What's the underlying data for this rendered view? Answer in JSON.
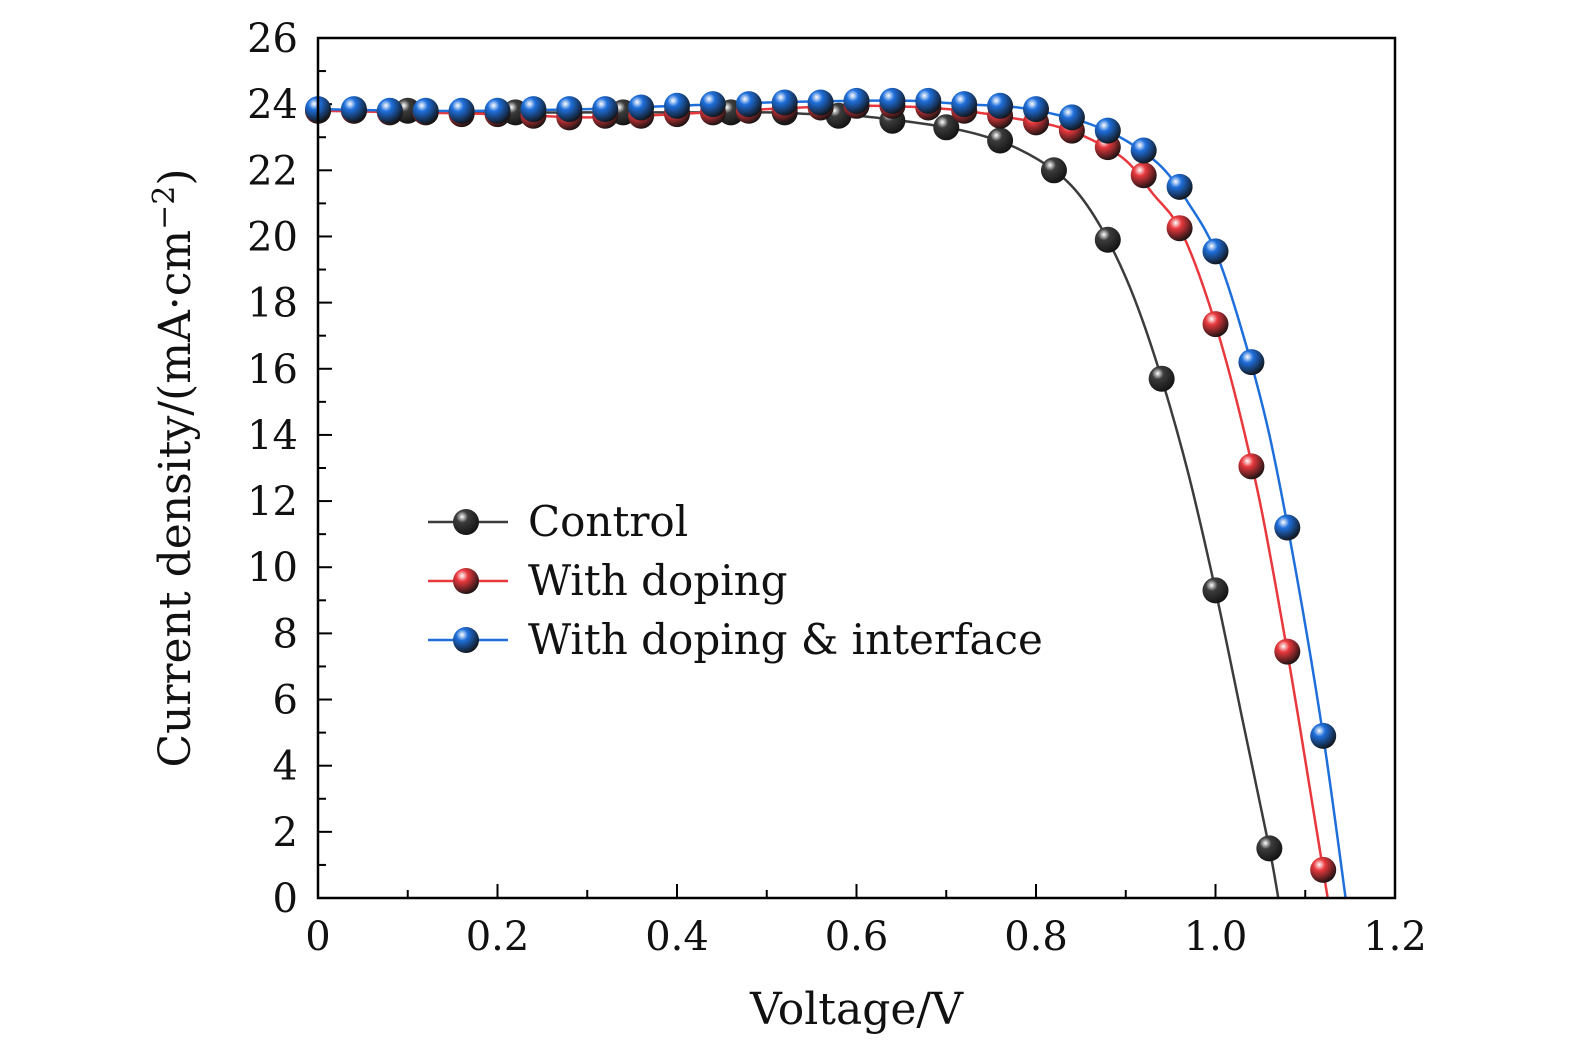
{
  "chart_data": {
    "type": "line",
    "title": "",
    "xlabel": "Voltage/V",
    "ylabel": "Current density/(mA·cm−2)",
    "ylabel_main": "Current density/(mA·cm",
    "ylabel_sup": "−2",
    "ylabel_close": ")",
    "xlim": [
      0,
      1.2
    ],
    "ylim": [
      0,
      26
    ],
    "x_ticks": [
      "0",
      "0.2",
      "0.4",
      "0.6",
      "0.8",
      "1.0",
      "1.2"
    ],
    "x_tick_values": [
      0,
      0.2,
      0.4,
      0.6,
      0.8,
      1.0,
      1.2
    ],
    "y_ticks": [
      "0",
      "2",
      "4",
      "6",
      "8",
      "10",
      "12",
      "14",
      "16",
      "18",
      "20",
      "22",
      "24",
      "26"
    ],
    "y_tick_values": [
      0,
      2,
      4,
      6,
      8,
      10,
      12,
      14,
      16,
      18,
      20,
      22,
      24,
      26
    ],
    "grid": false,
    "legend_position": "center-left",
    "series": [
      {
        "name": "Control",
        "color": "#3c3c3c",
        "marker_x": [
          0,
          0.04,
          0.1,
          0.16,
          0.22,
          0.28,
          0.34,
          0.4,
          0.46,
          0.52,
          0.58,
          0.64,
          0.7,
          0.76,
          0.82,
          0.88,
          0.94,
          1.0,
          1.06
        ],
        "marker_y": [
          23.8,
          23.8,
          23.8,
          23.75,
          23.75,
          23.7,
          23.75,
          23.75,
          23.75,
          23.75,
          23.65,
          23.5,
          23.3,
          22.9,
          22.0,
          19.9,
          15.7,
          9.3,
          1.5
        ],
        "line_x": [
          0,
          0.1,
          0.2,
          0.3,
          0.4,
          0.5,
          0.55,
          0.6,
          0.65,
          0.7,
          0.74,
          0.78,
          0.82,
          0.85,
          0.88,
          0.91,
          0.94,
          0.97,
          1.0,
          1.03,
          1.06,
          1.07
        ],
        "line_y": [
          23.8,
          23.8,
          23.75,
          23.75,
          23.75,
          23.75,
          23.7,
          23.65,
          23.5,
          23.3,
          23.05,
          22.65,
          22.0,
          21.2,
          19.9,
          18.1,
          15.7,
          12.8,
          9.3,
          5.4,
          1.5,
          0
        ]
      },
      {
        "name": "With doping",
        "color": "#e8383d",
        "marker_x": [
          0,
          0.04,
          0.08,
          0.12,
          0.16,
          0.2,
          0.24,
          0.28,
          0.32,
          0.36,
          0.4,
          0.44,
          0.48,
          0.52,
          0.56,
          0.6,
          0.64,
          0.68,
          0.72,
          0.76,
          0.8,
          0.84,
          0.88,
          0.92,
          0.96,
          1.0,
          1.04,
          1.08,
          1.12
        ],
        "marker_y": [
          23.8,
          23.8,
          23.75,
          23.75,
          23.7,
          23.7,
          23.65,
          23.6,
          23.65,
          23.65,
          23.7,
          23.75,
          23.8,
          23.85,
          23.9,
          23.95,
          23.95,
          23.9,
          23.8,
          23.65,
          23.45,
          23.2,
          22.7,
          21.85,
          20.25,
          17.35,
          13.05,
          7.45,
          0.85
        ],
        "line_x": [
          0,
          0.1,
          0.2,
          0.3,
          0.4,
          0.5,
          0.6,
          0.66,
          0.72,
          0.78,
          0.82,
          0.86,
          0.9,
          0.93,
          0.96,
          0.99,
          1.02,
          1.05,
          1.08,
          1.11,
          1.125
        ],
        "line_y": [
          23.8,
          23.75,
          23.7,
          23.6,
          23.7,
          23.85,
          23.95,
          23.92,
          23.8,
          23.55,
          23.35,
          22.95,
          22.3,
          21.3,
          20.25,
          18.2,
          15.4,
          11.9,
          7.45,
          2.5,
          0
        ]
      },
      {
        "name": "With doping & interface",
        "color": "#1f6fdb",
        "marker_x": [
          0,
          0.04,
          0.08,
          0.12,
          0.16,
          0.2,
          0.24,
          0.28,
          0.32,
          0.36,
          0.4,
          0.44,
          0.48,
          0.52,
          0.56,
          0.6,
          0.64,
          0.68,
          0.72,
          0.76,
          0.8,
          0.84,
          0.88,
          0.92,
          0.96,
          1.0,
          1.04,
          1.08,
          1.12
        ],
        "marker_y": [
          23.85,
          23.85,
          23.8,
          23.8,
          23.8,
          23.8,
          23.85,
          23.85,
          23.85,
          23.9,
          23.95,
          24.0,
          24.0,
          24.05,
          24.05,
          24.1,
          24.1,
          24.1,
          24.0,
          23.95,
          23.85,
          23.6,
          23.2,
          22.6,
          21.5,
          19.55,
          16.2,
          11.2,
          4.9
        ],
        "line_x": [
          0,
          0.1,
          0.2,
          0.3,
          0.4,
          0.5,
          0.6,
          0.66,
          0.72,
          0.78,
          0.82,
          0.86,
          0.9,
          0.94,
          0.97,
          1.0,
          1.03,
          1.06,
          1.09,
          1.12,
          1.145
        ],
        "line_y": [
          23.85,
          23.8,
          23.8,
          23.85,
          23.95,
          24.05,
          24.1,
          24.1,
          24.0,
          23.9,
          23.7,
          23.4,
          22.9,
          22.1,
          21.0,
          19.55,
          17.1,
          14.0,
          9.8,
          4.9,
          0
        ]
      }
    ]
  }
}
